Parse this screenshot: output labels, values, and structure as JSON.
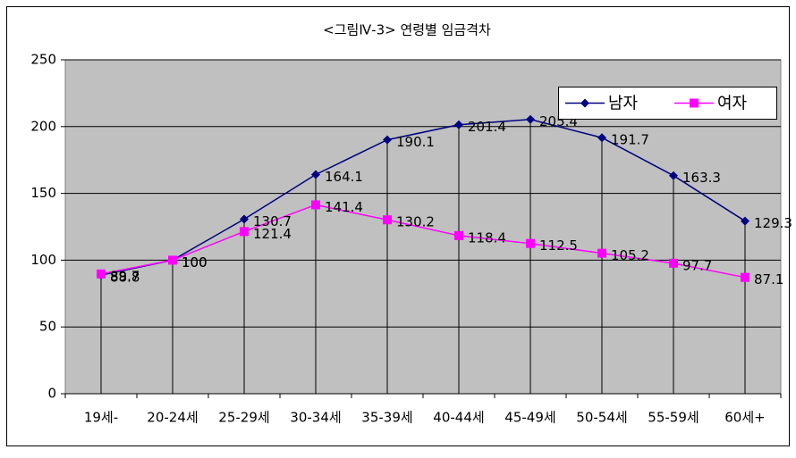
{
  "chart_data": {
    "type": "line",
    "title": "<그림Ⅳ-3> 연령별 임금격차",
    "categories": [
      "19세-",
      "20-24세",
      "25-29세",
      "30-34세",
      "35-39세",
      "40-44세",
      "45-49세",
      "50-54세",
      "55-59세",
      "60세+"
    ],
    "series": [
      {
        "name": "남자",
        "color": "#000080",
        "marker": "diamond",
        "values": [
          88.8,
          100,
          130.7,
          164.1,
          190.1,
          201.4,
          205.4,
          191.7,
          163.3,
          129.3
        ]
      },
      {
        "name": "여자",
        "color": "#ff00ff",
        "marker": "square",
        "values": [
          89.7,
          100,
          121.4,
          141.4,
          130.2,
          118.4,
          112.5,
          105.2,
          97.7,
          87.1
        ]
      }
    ],
    "ylim": [
      0,
      250
    ],
    "yticks": [
      0,
      50,
      100,
      150,
      200,
      250
    ],
    "grid": true,
    "legend": "upper right"
  }
}
